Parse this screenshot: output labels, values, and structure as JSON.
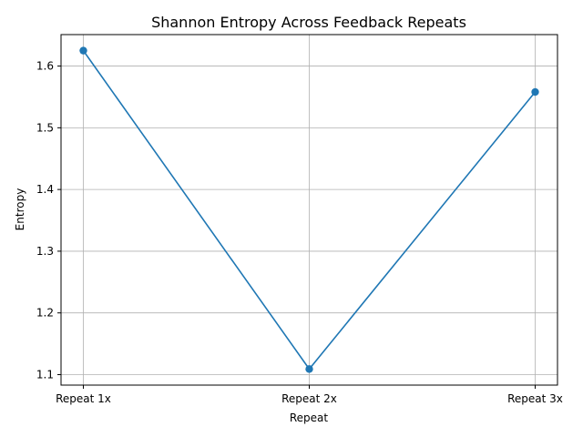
{
  "chart_data": {
    "type": "line",
    "title": "Shannon Entropy Across Feedback Repeats",
    "xlabel": "Repeat",
    "ylabel": "Entropy",
    "categories": [
      "Repeat 1x",
      "Repeat 2x",
      "Repeat 3x"
    ],
    "series": [
      {
        "values": [
          1.625,
          1.109,
          1.558
        ],
        "color": "#1f77b4",
        "marker": "circle"
      }
    ],
    "ylim": [
      1.083,
      1.651
    ],
    "yticks": [
      "1.1",
      "1.2",
      "1.3",
      "1.4",
      "1.5",
      "1.6"
    ],
    "grid": true
  }
}
